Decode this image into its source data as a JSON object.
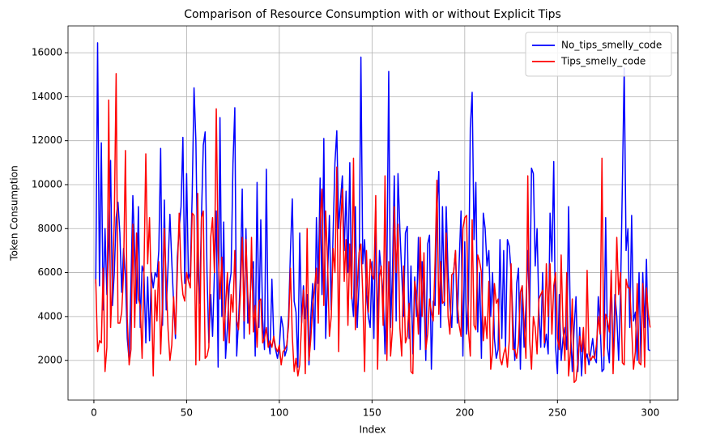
{
  "chart_data": {
    "type": "line",
    "title": "Comparison of Resource Consumption with or without Explicit Tips",
    "xlabel": "Index",
    "ylabel": "Token Consumption",
    "x": [
      1,
      2,
      3,
      4,
      5,
      6,
      7,
      8,
      9,
      10,
      11,
      12,
      13,
      14,
      15,
      16,
      17,
      18,
      19,
      20,
      21,
      22,
      23,
      24,
      25,
      26,
      27,
      28,
      29,
      30,
      31,
      32,
      33,
      34,
      35,
      36,
      37,
      38,
      39,
      40,
      41,
      42,
      43,
      44,
      45,
      46,
      47,
      48,
      49,
      50,
      51,
      52,
      53,
      54,
      55,
      56,
      57,
      58,
      59,
      60,
      61,
      62,
      63,
      64,
      65,
      66,
      67,
      68,
      69,
      70,
      71,
      72,
      73,
      74,
      75,
      76,
      77,
      78,
      79,
      80,
      81,
      82,
      83,
      84,
      85,
      86,
      87,
      88,
      89,
      90,
      91,
      92,
      93,
      94,
      95,
      96,
      97,
      98,
      99,
      100,
      101,
      102,
      103,
      104,
      105,
      106,
      107,
      108,
      109,
      110,
      111,
      112,
      113,
      114,
      115,
      116,
      117,
      118,
      119,
      120,
      121,
      122,
      123,
      124,
      125,
      126,
      127,
      128,
      129,
      130,
      131,
      132,
      133,
      134,
      135,
      136,
      137,
      138,
      139,
      140,
      141,
      142,
      143,
      144,
      145,
      146,
      147,
      148,
      149,
      150,
      151,
      152,
      153,
      154,
      155,
      156,
      157,
      158,
      159,
      160,
      161,
      162,
      163,
      164,
      165,
      166,
      167,
      168,
      169,
      170,
      171,
      172,
      173,
      174,
      175,
      176,
      177,
      178,
      179,
      180,
      181,
      182,
      183,
      184,
      185,
      186,
      187,
      188,
      189,
      190,
      191,
      192,
      193,
      194,
      195,
      196,
      197,
      198,
      199,
      200,
      201,
      202,
      203,
      204,
      205,
      206,
      207,
      208,
      209,
      210,
      211,
      212,
      213,
      214,
      215,
      216,
      217,
      218,
      219,
      220,
      221,
      222,
      223,
      224,
      225,
      226,
      227,
      228,
      229,
      230,
      231,
      232,
      233,
      234,
      235,
      236,
      237,
      238,
      239,
      240,
      241,
      242,
      243,
      244,
      245,
      246,
      247,
      248,
      249,
      250,
      251,
      252,
      253,
      254,
      255,
      256,
      257,
      258,
      259,
      260,
      261,
      262,
      263,
      264,
      265,
      266,
      267,
      268,
      269,
      270,
      271,
      272,
      273,
      274,
      275,
      276,
      277,
      278,
      279,
      280,
      281,
      282,
      283,
      284,
      285,
      286,
      287,
      288,
      289,
      290,
      291,
      292,
      293,
      294,
      295,
      296,
      297,
      298,
      299,
      300
    ],
    "series": [
      {
        "name": "No_tips_smelly_code",
        "color": "#0000ff",
        "values": [
          5500,
          16450,
          5400,
          11900,
          4300,
          8000,
          5000,
          7200,
          11100,
          4500,
          6000,
          8500,
          9200,
          7800,
          5100,
          7100,
          5900,
          3000,
          2000,
          5500,
          9500,
          7000,
          4600,
          9000,
          3500,
          6300,
          6000,
          2800,
          5800,
          2900,
          6000,
          5300,
          6000,
          5800,
          7000,
          11650,
          3600,
          9300,
          4300,
          6300,
          8650,
          6500,
          4600,
          3000,
          6700,
          8000,
          9000,
          12150,
          5500,
          10500,
          5700,
          6000,
          9500,
          14400,
          12000,
          6000,
          4600,
          8500,
          11800,
          12400,
          6000,
          2800,
          5000,
          3100,
          6000,
          8800,
          1700,
          13050,
          4000,
          8300,
          2100,
          3500,
          5400,
          6000,
          10950,
          13500,
          2200,
          3800,
          5800,
          9800,
          3000,
          8000,
          3700,
          4500,
          6000,
          6500,
          2200,
          10100,
          3500,
          8400,
          3900,
          2500,
          10700,
          3000,
          2300,
          5700,
          3000,
          2500,
          2100,
          2600,
          4000,
          3500,
          2200,
          2500,
          4000,
          7000,
          9350,
          4700,
          4200,
          1700,
          7800,
          3700,
          5400,
          3900,
          5000,
          1800,
          4000,
          5500,
          2500,
          8500,
          5500,
          10300,
          5000,
          12100,
          3000,
          5700,
          8600,
          4300,
          7800,
          11000,
          12450,
          8000,
          9300,
          10400,
          7000,
          9700,
          6000,
          11000,
          5000,
          4000,
          9000,
          3500,
          5500,
          15800,
          6400,
          7500,
          5000,
          4000,
          3500,
          6500,
          3000,
          8800,
          3300,
          7000,
          6000,
          5000,
          2300,
          6000,
          15150,
          3500,
          6000,
          10400,
          3800,
          10500,
          8000,
          6000,
          4000,
          7800,
          8100,
          3000,
          6300,
          2300,
          5800,
          4000,
          7600,
          2500,
          6500,
          5000,
          2000,
          7300,
          7700,
          1600,
          4700,
          4500,
          8900,
          10600,
          3500,
          9000,
          4500,
          9000,
          6000,
          4500,
          3500,
          6000,
          7000,
          3700,
          6500,
          8800,
          2200,
          7400,
          3200,
          4700,
          12600,
          14200,
          7500,
          10100,
          3300,
          6000,
          2100,
          8700,
          8000,
          6300,
          7000,
          4000,
          6000,
          3000,
          2100,
          2500,
          7500,
          3000,
          7000,
          2600,
          7500,
          7200,
          6000,
          3800,
          2000,
          5500,
          6200,
          1600,
          5400,
          2600,
          4500,
          7000,
          4000,
          10750,
          10500,
          6300,
          8000,
          4200,
          2600,
          6000,
          2600,
          3200,
          2300,
          8700,
          6500,
          11050,
          2600,
          1400,
          5000,
          2000,
          3000,
          3500,
          2500,
          9000,
          3500,
          1500,
          3500,
          4900,
          1500,
          3500,
          1300,
          3000,
          2000,
          2300,
          1800,
          2400,
          3000,
          2100,
          1900,
          4900,
          3700,
          1500,
          1600,
          8500,
          2600,
          1900,
          6000,
          1800,
          5000,
          4000,
          2000,
          5000,
          10000,
          15300,
          7000,
          8000,
          3500,
          8600,
          3800,
          4200,
          2000,
          6000,
          1900,
          6000,
          3500,
          6600,
          2500,
          2450
        ]
      },
      {
        "name": "Tips_smelly_code",
        "color": "#ff0000",
        "values": [
          5700,
          2400,
          2900,
          2800,
          6200,
          1500,
          2600,
          13850,
          3500,
          5600,
          8400,
          15050,
          3700,
          3700,
          4200,
          6000,
          11550,
          3900,
          1800,
          2500,
          8200,
          3500,
          7800,
          4800,
          4500,
          2100,
          6000,
          11400,
          6400,
          8500,
          5000,
          1300,
          5200,
          3800,
          6500,
          2300,
          4600,
          8000,
          5600,
          3400,
          2000,
          2700,
          4900,
          3200,
          6000,
          8700,
          6000,
          5000,
          4700,
          6000,
          5600,
          5300,
          8700,
          8600,
          1800,
          9600,
          2000,
          8500,
          8800,
          2100,
          2200,
          2600,
          7600,
          8500,
          6000,
          13450,
          7000,
          4800,
          6700,
          2900,
          4400,
          6000,
          2800,
          5000,
          4200,
          7000,
          3800,
          3400,
          5000,
          7600,
          3800,
          7500,
          5000,
          3200,
          7600,
          3300,
          4500,
          2600,
          4700,
          4800,
          2800,
          3000,
          3500,
          2600,
          2900,
          2600,
          3100,
          2600,
          2400,
          2700,
          1800,
          2400,
          2500,
          2700,
          3600,
          6200,
          3100,
          1500,
          2100,
          1300,
          1800,
          3700,
          5200,
          1400,
          8000,
          2000,
          3000,
          4500,
          5300,
          6200,
          3700,
          8300,
          9800,
          4500,
          8800,
          6500,
          3100,
          4000,
          7100,
          6000,
          10800,
          2400,
          8000,
          9800,
          5600,
          7500,
          3600,
          7300,
          4800,
          11200,
          3400,
          5300,
          6900,
          7300,
          5000,
          1500,
          7000,
          4200,
          6600,
          5900,
          5700,
          9500,
          1600,
          5800,
          6300,
          3600,
          10400,
          2000,
          6500,
          2200,
          3400,
          9000,
          6000,
          8200,
          3500,
          2200,
          6300,
          2800,
          3100,
          4600,
          1500,
          1400,
          5600,
          5000,
          3200,
          7600,
          4000,
          6900,
          2500,
          3200,
          4800,
          4200,
          3800,
          6500,
          10200,
          4100,
          6500,
          4600,
          4700,
          7800,
          4000,
          3200,
          5900,
          6000,
          7000,
          4600,
          3600,
          3100,
          8000,
          8500,
          8600,
          3400,
          2200,
          8400,
          3600,
          3400,
          6800,
          6500,
          6000,
          2900,
          4000,
          3000,
          5600,
          1600,
          2400,
          5500,
          4600,
          4800,
          2100,
          1800,
          2300,
          2600,
          1700,
          2900,
          6400,
          2500,
          2500,
          2100,
          2800,
          5100,
          5400,
          3700,
          2100,
          10400,
          2900,
          1600,
          4000,
          3500,
          2300,
          4800,
          5000,
          5200,
          2800,
          6400,
          4000,
          6400,
          3200,
          5400,
          6000,
          3000,
          2500,
          6800,
          3500,
          2000,
          6000,
          1300,
          2400,
          4800,
          1000,
          1100,
          1900,
          3100,
          2400,
          3500,
          1400,
          6100,
          2300,
          2000,
          2200,
          2100,
          2700,
          4000,
          3200,
          11200,
          2200,
          4100,
          3800,
          3300,
          6100,
          1400,
          3700,
          7600,
          5000,
          6000,
          1900,
          1800,
          5700,
          5300,
          5300,
          3500,
          1600,
          2400,
          5500,
          1900,
          1800,
          5500,
          1700,
          5300,
          4100,
          3500
        ]
      }
    ],
    "xlim": [
      -13.95,
      314.95
    ],
    "xticks": [
      0,
      50,
      100,
      150,
      200,
      250,
      300
    ],
    "ylim": [
      200,
      17220
    ],
    "yticks": [
      2000,
      4000,
      6000,
      8000,
      10000,
      12000,
      14000,
      16000
    ],
    "grid": true,
    "legend": "upper right"
  }
}
